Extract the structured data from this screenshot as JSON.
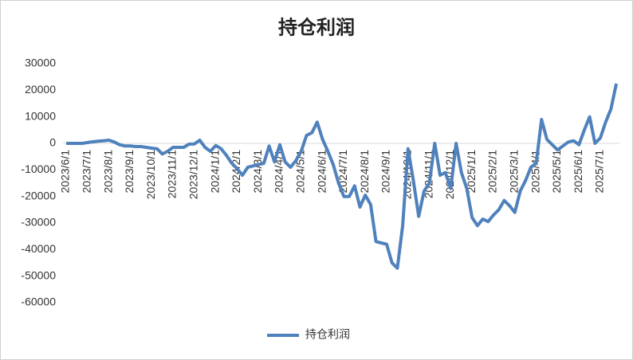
{
  "chart_data": {
    "type": "line",
    "title": "持仓利润",
    "categories": [
      "2023/6/1",
      null,
      null,
      null,
      "2023/7/1",
      null,
      null,
      null,
      "2023/8/1",
      null,
      null,
      null,
      "2023/9/1",
      null,
      null,
      null,
      "2023/10/1",
      null,
      null,
      null,
      "2023/11/1",
      null,
      null,
      null,
      "2023/12/1",
      null,
      null,
      null,
      "2024/1/1",
      null,
      null,
      null,
      "2024/2/1",
      null,
      null,
      null,
      "2024/3/1",
      null,
      null,
      null,
      "2024/4/1",
      null,
      null,
      null,
      "2024/5/1",
      null,
      null,
      null,
      "2024/6/1",
      null,
      null,
      null,
      "2024/7/1",
      null,
      null,
      null,
      "2024/8/1",
      null,
      null,
      null,
      "2024/9/1",
      null,
      null,
      null,
      "2024/10/1",
      null,
      null,
      null,
      "2024/11/1",
      null,
      null,
      null,
      "2024/12/1",
      null,
      null,
      null,
      "2025/1/1",
      null,
      null,
      null,
      "2025/2/1",
      null,
      null,
      null,
      "2025/3/1",
      null,
      null,
      null,
      "2025/4/1",
      null,
      null,
      null,
      "2025/5/1",
      null,
      null,
      null,
      "2025/6/1",
      null,
      null,
      null,
      "2025/7/1",
      null,
      null,
      null
    ],
    "series": [
      {
        "name": "持仓利润",
        "color": "#4f81bd",
        "values": [
          0,
          0,
          0,
          0,
          300,
          600,
          800,
          1000,
          1200,
          500,
          -500,
          -1000,
          -1000,
          -1200,
          -1200,
          -1500,
          -1800,
          -2000,
          -4000,
          -3000,
          -1500,
          -1500,
          -1500,
          -300,
          -200,
          1200,
          -1500,
          -3000,
          -800,
          -2000,
          -4500,
          -7500,
          -9500,
          -12000,
          -9000,
          -8500,
          -8000,
          -7500,
          -1000,
          -7000,
          -500,
          -7000,
          -9000,
          -6500,
          -3000,
          3000,
          4000,
          8000,
          1500,
          -3000,
          -8000,
          -15000,
          -20000,
          -20000,
          -16000,
          -24000,
          -19500,
          -23000,
          -37000,
          -37500,
          -38000,
          -45000,
          -47000,
          -31000,
          -2000,
          -14000,
          -27500,
          -18000,
          -15000,
          0,
          -12000,
          -11000,
          -17000,
          0,
          -11000,
          -17000,
          -28000,
          -31000,
          -28500,
          -29500,
          -27000,
          -25000,
          -21500,
          -23500,
          -26000,
          -18000,
          -14000,
          -9000,
          -7500,
          9000,
          1500,
          -500,
          -2500,
          -1000,
          500,
          1000,
          -500,
          5000,
          10000,
          0,
          2000,
          8000,
          13000,
          22500
        ]
      }
    ],
    "ylim": [
      -60000,
      30000
    ],
    "yticks": [
      30000,
      20000,
      10000,
      0,
      -10000,
      -20000,
      -30000,
      -40000,
      -50000,
      -60000
    ],
    "legend": "bottom",
    "grid": false
  }
}
